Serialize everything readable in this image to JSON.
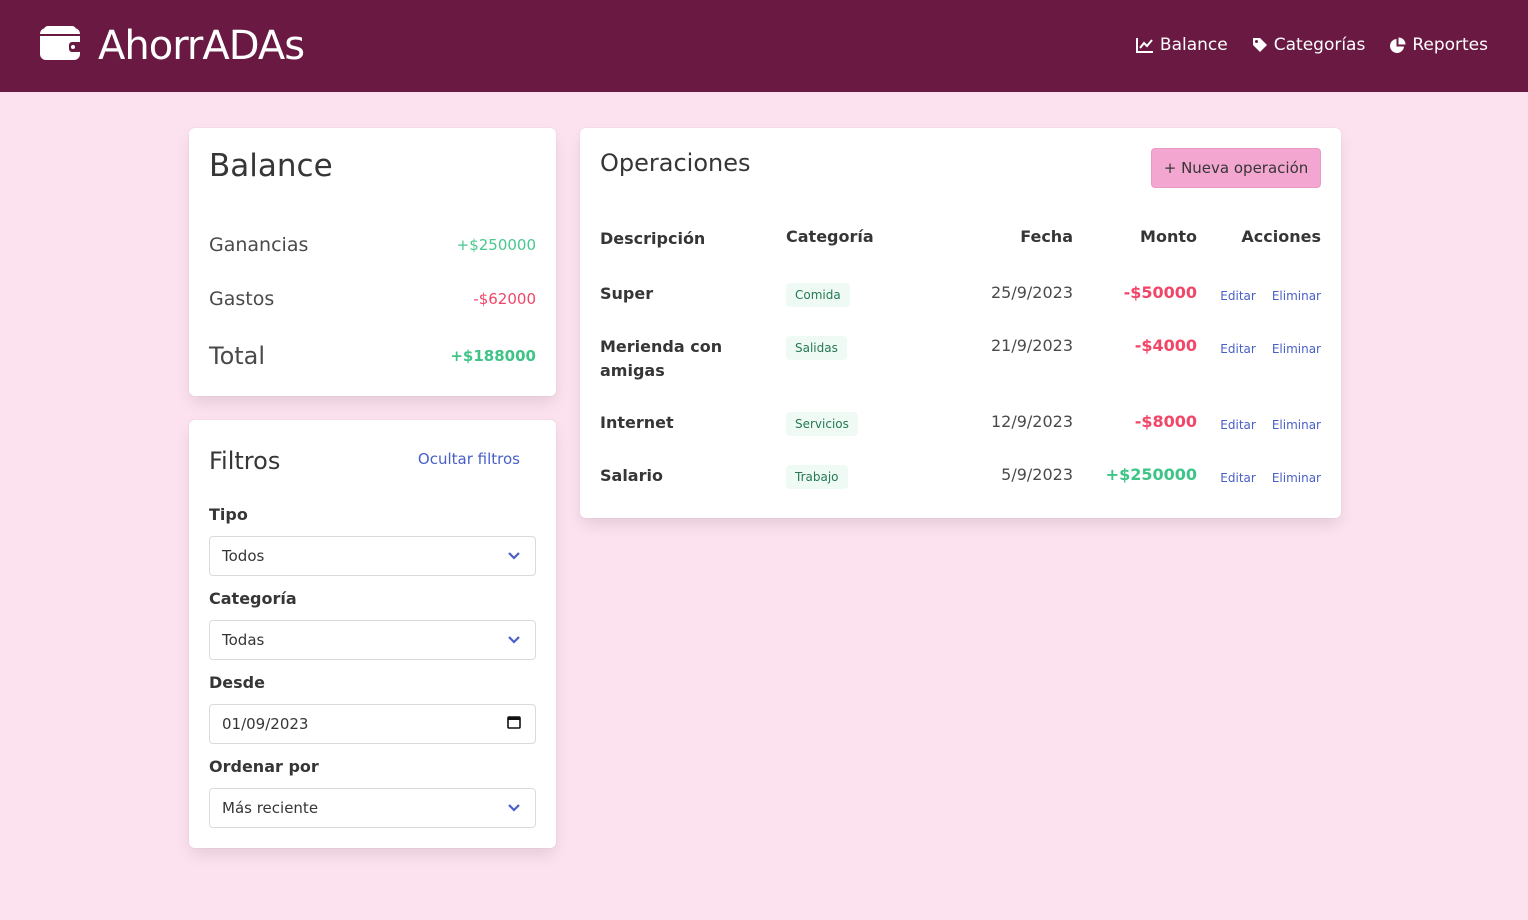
{
  "app": {
    "title": "AhorrADAs"
  },
  "nav": [
    {
      "label": "Balance",
      "icon": "chart-line-icon"
    },
    {
      "label": "Categorías",
      "icon": "tag-icon"
    },
    {
      "label": "Reportes",
      "icon": "pie-chart-icon"
    }
  ],
  "balance": {
    "title": "Balance",
    "ganancias_label": "Ganancias",
    "ganancias_value": "+$250000",
    "gastos_label": "Gastos",
    "gastos_value": "-$62000",
    "total_label": "Total",
    "total_value": "+$188000"
  },
  "filters": {
    "title": "Filtros",
    "hide_label": "Ocultar filtros",
    "tipo_label": "Tipo",
    "tipo_value": "Todos",
    "categoria_label": "Categoría",
    "categoria_value": "Todas",
    "desde_label": "Desde",
    "desde_value": "01/09/2023",
    "orden_label": "Ordenar por",
    "orden_value": "Más reciente"
  },
  "operations": {
    "title": "Operaciones",
    "new_button": "+ Nueva operación",
    "headers": {
      "descripcion": "Descripción",
      "categoria": "Categoría",
      "fecha": "Fecha",
      "monto": "Monto",
      "acciones": "Acciones"
    },
    "edit_label": "Editar",
    "delete_label": "Eliminar",
    "rows": [
      {
        "descripcion": "Super",
        "categoria": "Comida",
        "fecha": "25/9/2023",
        "monto": "-$50000"
      },
      {
        "descripcion": "Merienda con amigas",
        "categoria": "Salidas",
        "fecha": "21/9/2023",
        "monto": "-$4000"
      },
      {
        "descripcion": "Internet",
        "categoria": "Servicios",
        "fecha": "12/9/2023",
        "monto": "-$8000"
      },
      {
        "descripcion": "Salario",
        "categoria": "Trabajo",
        "fecha": "5/9/2023",
        "monto": "+$250000"
      }
    ]
  },
  "colors": {
    "navbar": "#6a1942",
    "background": "#fce1ee",
    "accent_button": "#f3a6cf",
    "positive": "#48c78e",
    "negative": "#f14668",
    "link": "#485fc7"
  }
}
